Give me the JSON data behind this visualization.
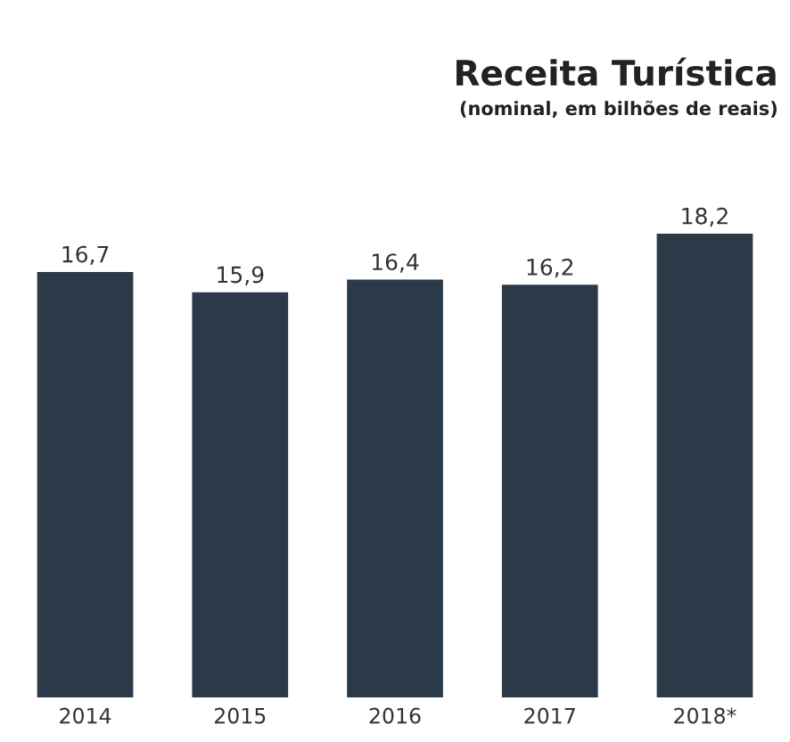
{
  "chart_data": {
    "type": "bar",
    "title": "Receita Turística",
    "subtitle": "(nominal, em bilhões de reais)",
    "categories": [
      "2014",
      "2015",
      "2016",
      "2017",
      "2018*"
    ],
    "values": [
      16.7,
      15.9,
      16.4,
      16.2,
      18.2
    ],
    "value_labels": [
      "16,7",
      "15,9",
      "16,4",
      "16,2",
      "18,2"
    ],
    "color": "#2b3a48",
    "grid": false,
    "legend": false
  }
}
